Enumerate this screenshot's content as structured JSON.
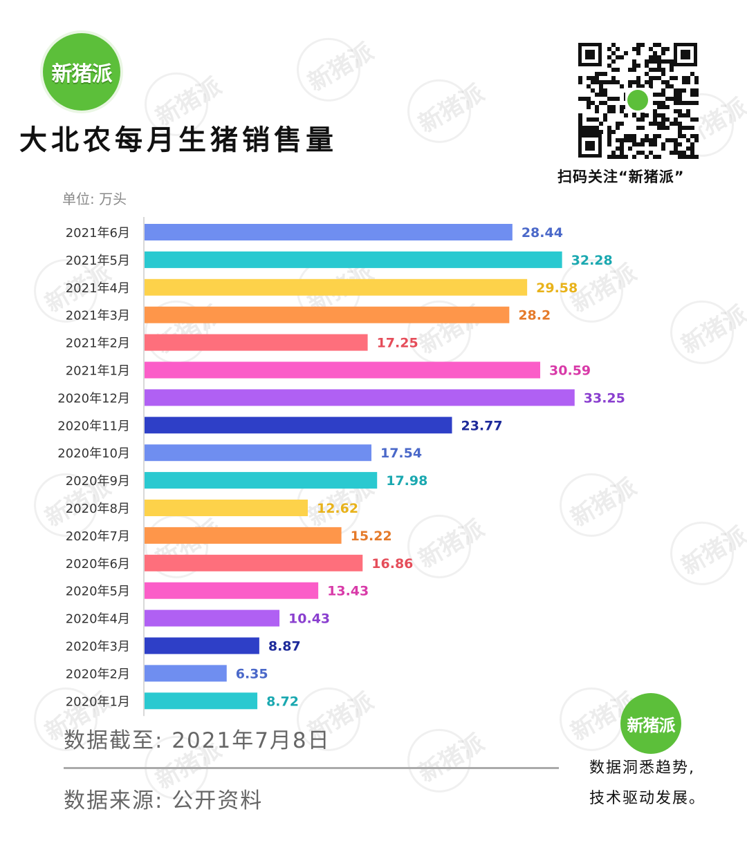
{
  "brand": {
    "logo_text": "新猪派",
    "qr_caption": "扫码关注“新猪派”"
  },
  "title": "大北农每月生猪销售量",
  "unit_label": "单位: 万头",
  "footer": {
    "date_note": "数据截至: 2021年7月8日",
    "source_note": "数据来源: 公开资料",
    "slogan_line1": "数据洞悉趋势,",
    "slogan_line2": "技术驱动发展。"
  },
  "colors": {
    "bar_palette": [
      "#6f8ef0",
      "#2ac9d0",
      "#fdd24a",
      "#fe964a",
      "#fe6f7c",
      "#fb5dc8",
      "#b060f3",
      "#2e3fc7"
    ]
  },
  "chart_data": {
    "type": "bar",
    "orientation": "horizontal",
    "title": "大北农每月生猪销售量",
    "unit": "万头",
    "grid": false,
    "categories": [
      "2021年6月",
      "2021年5月",
      "2021年4月",
      "2021年3月",
      "2021年2月",
      "2021年1月",
      "2020年12月",
      "2020年11月",
      "2020年10月",
      "2020年9月",
      "2020年8月",
      "2020年7月",
      "2020年6月",
      "2020年5月",
      "2020年4月",
      "2020年3月",
      "2020年2月",
      "2020年1月"
    ],
    "values": [
      28.44,
      32.28,
      29.58,
      28.2,
      17.25,
      30.59,
      33.25,
      23.77,
      17.54,
      17.98,
      12.62,
      15.22,
      16.86,
      13.43,
      10.43,
      8.87,
      6.35,
      8.72
    ],
    "value_labels": [
      "28.44",
      "32.28",
      "29.58",
      "28.2",
      "17.25",
      "30.59",
      "33.25",
      "23.77",
      "17.54",
      "17.98",
      "12.62",
      "15.22",
      "16.86",
      "13.43",
      "10.43",
      "8.87",
      "6.35",
      "8.72"
    ],
    "bar_colors": [
      "#6f8ef0",
      "#2ac9d0",
      "#fdd24a",
      "#fe964a",
      "#fe6f7c",
      "#fb5dc8",
      "#b060f3",
      "#2e3fc7",
      "#6f8ef0",
      "#2ac9d0",
      "#fdd24a",
      "#fe964a",
      "#fe6f7c",
      "#fb5dc8",
      "#b060f3",
      "#2e3fc7",
      "#6f8ef0",
      "#2ac9d0"
    ],
    "label_colors": [
      "#4a68c9",
      "#1aa8b0",
      "#e8b21a",
      "#e57a2a",
      "#e54d5a",
      "#d83aa8",
      "#8a3fcf",
      "#1d2a9a",
      "#4a68c9",
      "#1aa8b0",
      "#e8b21a",
      "#e57a2a",
      "#e54d5a",
      "#d83aa8",
      "#8a3fcf",
      "#1d2a9a",
      "#4a68c9",
      "#1aa8b0"
    ]
  }
}
